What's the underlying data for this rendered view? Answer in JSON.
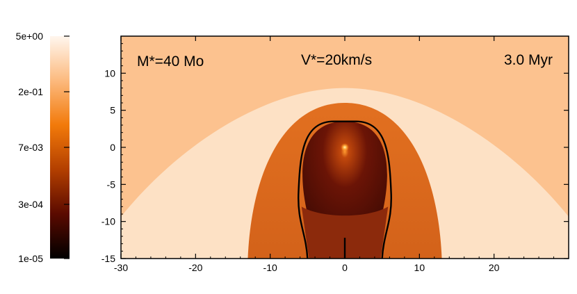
{
  "chart_data": {
    "type": "heatmap",
    "title": "",
    "xlabel": "",
    "ylabel": "",
    "xlim": [
      -30,
      30
    ],
    "ylim": [
      -15,
      15
    ],
    "x_ticks": [
      -30,
      -20,
      -10,
      0,
      10,
      20
    ],
    "y_ticks": [
      -15,
      -10,
      -5,
      0,
      5,
      10
    ],
    "colorbar": {
      "scale": "log",
      "range": [
        1e-05,
        5
      ],
      "tick_labels": [
        "5e+00",
        "2e-01",
        "7e-03",
        "3e-04",
        "1e-05"
      ],
      "colors": [
        "#000000",
        "#5a0a00",
        "#b33f00",
        "#f27a0a",
        "#fcba7e",
        "#fff6ee"
      ]
    },
    "annotations": {
      "mass": "M*=40 Mo",
      "velocity": "V*=20km/s",
      "time": "3.0 Myr"
    },
    "regions": [
      {
        "name": "ambient-medium",
        "color": "#fcc28f"
      },
      {
        "name": "outer-shocked-shell",
        "color": "#fde1c5",
        "apex_y": 8
      },
      {
        "name": "shocked-wind-shell",
        "color": "#d86b18",
        "apex_y": 6,
        "base_half_width": 13
      },
      {
        "name": "inner-cavity",
        "color": "#4a0f05",
        "apex_y": 3.5,
        "base_half_width": 5
      },
      {
        "name": "star",
        "color": "#fff3a0",
        "x": 0,
        "y": 0
      }
    ],
    "contour": {
      "color": "#000000",
      "apex_y": 3.5,
      "base_half_width": 5
    }
  }
}
